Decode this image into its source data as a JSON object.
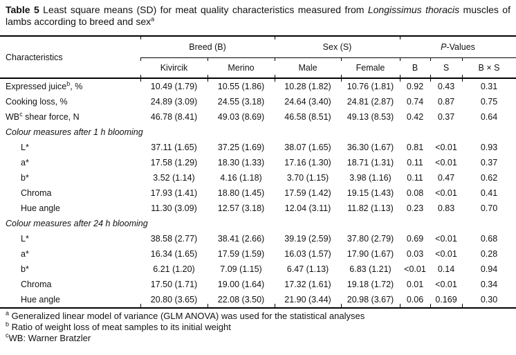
{
  "title": {
    "label": "Table 5",
    "text_before_italic": " Least square means (SD) for meat quality characteristics measured from ",
    "italic": "Longissimus thoracis",
    "text_after_italic": " muscles of lambs according to breed and sex",
    "sup": "a"
  },
  "table": {
    "header": {
      "characteristics": "Characteristics",
      "groups": [
        {
          "label": "Breed (B)"
        },
        {
          "label": "Sex (S)"
        },
        {
          "label_italic": "P",
          "label_rest": "-Values"
        }
      ],
      "columns": [
        "Kivircik",
        "Merino",
        "Male",
        "Female",
        "B",
        "S",
        "B × S"
      ]
    },
    "rows": [
      {
        "type": "data",
        "indent": false,
        "label": {
          "pre": "Expressed juice",
          "sup": "b",
          "post": ", %"
        },
        "values": [
          "10.49 (1.79)",
          "10.55 (1.86)",
          "10.28 (1.82)",
          "10.76 (1.81)",
          "0.92",
          "0.43",
          "0.31"
        ]
      },
      {
        "type": "data",
        "indent": false,
        "label": {
          "pre": "Cooking loss, %"
        },
        "values": [
          "24.89 (3.09)",
          "24.55 (3.18)",
          "24.64 (3.40)",
          "24.81 (2.87)",
          "0.74",
          "0.87",
          "0.75"
        ]
      },
      {
        "type": "data",
        "indent": false,
        "label": {
          "pre": "WB",
          "sup": "c",
          "post": " shear force, N"
        },
        "values": [
          "46.78 (8.41)",
          "49.03 (8.69)",
          "46.58 (8.51)",
          "49.13 (8.53)",
          "0.42",
          "0.37",
          "0.64"
        ]
      },
      {
        "type": "section",
        "label": {
          "pre": "Colour measures after 1 h blooming"
        }
      },
      {
        "type": "data",
        "indent": true,
        "label": {
          "pre": "L*"
        },
        "values": [
          "37.11 (1.65)",
          "37.25 (1.69)",
          "38.07 (1.65)",
          "36.30 (1.67)",
          "0.81",
          "<0.01",
          "0.93"
        ]
      },
      {
        "type": "data",
        "indent": true,
        "label": {
          "pre": "a*"
        },
        "values": [
          "17.58 (1.29)",
          "18.30 (1.33)",
          "17.16 (1.30)",
          "18.71 (1.31)",
          "0.11",
          "<0.01",
          "0.37"
        ]
      },
      {
        "type": "data",
        "indent": true,
        "label": {
          "pre": "b*"
        },
        "values": [
          "3.52 (1.14)",
          "4.16 (1.18)",
          "3.70 (1.15)",
          "3.98 (1.16)",
          "0.11",
          "0.47",
          "0.62"
        ]
      },
      {
        "type": "data",
        "indent": true,
        "label": {
          "pre": "Chroma"
        },
        "values": [
          "17.93 (1.41)",
          "18.80 (1.45)",
          "17.59 (1.42)",
          "19.15 (1.43)",
          "0.08",
          "<0.01",
          "0.41"
        ]
      },
      {
        "type": "data",
        "indent": true,
        "label": {
          "pre": "Hue angle"
        },
        "values": [
          "11.30 (3.09)",
          "12.57 (3.18)",
          "12.04 (3.11)",
          "11.82 (1.13)",
          "0.23",
          "0.83",
          "0.70"
        ]
      },
      {
        "type": "section",
        "label": {
          "pre": "Colour measures after 24 h blooming"
        }
      },
      {
        "type": "data",
        "indent": true,
        "label": {
          "pre": "L*"
        },
        "values": [
          "38.58 (2.77)",
          "38.41 (2.66)",
          "39.19 (2.59)",
          "37.80 (2.79)",
          "0.69",
          "<0.01",
          "0.68"
        ]
      },
      {
        "type": "data",
        "indent": true,
        "label": {
          "pre": "a*"
        },
        "values": [
          "16.34 (1.65)",
          "17.59 (1.59)",
          "16.03 (1.57)",
          "17.90 (1.67)",
          "0.03",
          "<0.01",
          "0.28"
        ]
      },
      {
        "type": "data",
        "indent": true,
        "label": {
          "pre": "b*"
        },
        "values": [
          "6.21 (1.20)",
          "7.09 (1.15)",
          "6.47 (1.13)",
          "6.83 (1.21)",
          "<0.01",
          "0.14",
          "0.94"
        ]
      },
      {
        "type": "data",
        "indent": true,
        "label": {
          "pre": "Chroma"
        },
        "values": [
          "17.50 (1.71)",
          "19.00 (1.64)",
          "17.32 (1.61)",
          "19.18 (1.72)",
          "0.01",
          "<0.01",
          "0.34"
        ]
      },
      {
        "type": "data",
        "indent": true,
        "label": {
          "pre": "Hue angle"
        },
        "values": [
          "20.80 (3.65)",
          "22.08 (3.50)",
          "21.90 (3.44)",
          "20.98 (3.67)",
          "0.06",
          "0.169",
          "0.30"
        ]
      }
    ]
  },
  "footnotes": [
    {
      "sup": "a",
      "text": " Generalized linear model of variance (GLM ANOVA) was used for the statistical analyses"
    },
    {
      "sup": "b",
      "text": " Ratio of weight loss of meat samples to its initial weight"
    },
    {
      "sup": "c",
      "text": "WB: Warner Bratzler"
    }
  ],
  "colors": {
    "text": "#111111",
    "rule": "#000000",
    "background": "#ffffff"
  }
}
